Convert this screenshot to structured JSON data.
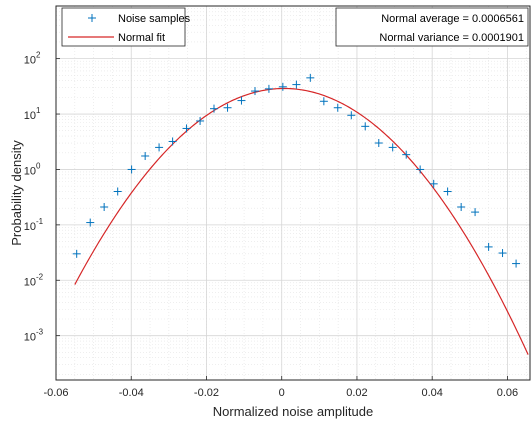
{
  "chart_data": {
    "type": "scatter",
    "xlabel": "Normalized noise amplitude",
    "ylabel": "Probability density",
    "xlim": [
      -0.06,
      0.066
    ],
    "ylim_exponent": [
      -3.8,
      2.95
    ],
    "y_scale": "log",
    "grid": true,
    "minor_grid": true,
    "legend_placement": "top-left",
    "x_ticks": [
      {
        "value": -0.06,
        "label": "-0.06"
      },
      {
        "value": -0.04,
        "label": "-0.04"
      },
      {
        "value": -0.02,
        "label": "-0.02"
      },
      {
        "value": 0,
        "label": "0"
      },
      {
        "value": 0.02,
        "label": "0.02"
      },
      {
        "value": 0.04,
        "label": "0.04"
      },
      {
        "value": 0.06,
        "label": "0.06"
      }
    ],
    "y_ticks": [
      {
        "exp": -3,
        "base": "10",
        "sup": "-3"
      },
      {
        "exp": -2,
        "base": "10",
        "sup": "-2"
      },
      {
        "exp": -1,
        "base": "10",
        "sup": "-1"
      },
      {
        "exp": 0,
        "base": "10",
        "sup": "0"
      },
      {
        "exp": 1,
        "base": "10",
        "sup": "1"
      },
      {
        "exp": 2,
        "base": "10",
        "sup": "2"
      }
    ],
    "series": [
      {
        "name": "Noise samples",
        "kind": "markers",
        "marker": "+",
        "color": "#0072BD",
        "x": [
          -0.0545,
          -0.0509,
          -0.0472,
          -0.0436,
          -0.0399,
          -0.0363,
          -0.0326,
          -0.029,
          -0.0253,
          -0.0217,
          -0.018,
          -0.0144,
          -0.0107,
          -0.0071,
          -0.0034,
          0.0003,
          0.0039,
          0.0076,
          0.0112,
          0.0149,
          0.0185,
          0.0222,
          0.0258,
          0.0295,
          0.0331,
          0.0368,
          0.0404,
          0.0441,
          0.0477,
          0.0514,
          0.055,
          0.0587,
          0.0623
        ],
        "y": [
          0.03,
          0.11,
          0.21,
          0.4,
          1.0,
          1.75,
          2.5,
          3.2,
          5.5,
          7.5,
          12.5,
          13.0,
          17.5,
          26.0,
          28.5,
          31.0,
          34.0,
          45.0,
          17.0,
          13.0,
          9.5,
          6.0,
          3.0,
          2.5,
          1.85,
          1.0,
          0.55,
          0.4,
          0.21,
          0.17,
          0.04,
          0.031,
          0.02
        ]
      },
      {
        "name": "Normal fit",
        "kind": "line",
        "color": "#D62728",
        "mean": 0.0006561,
        "variance": 0.0001901,
        "x_start": -0.055,
        "x_end": 0.0655
      }
    ],
    "annotations": {
      "average_label": "Normal average = 0.0006561",
      "variance_label": "Normal variance = 0.0001901"
    }
  }
}
